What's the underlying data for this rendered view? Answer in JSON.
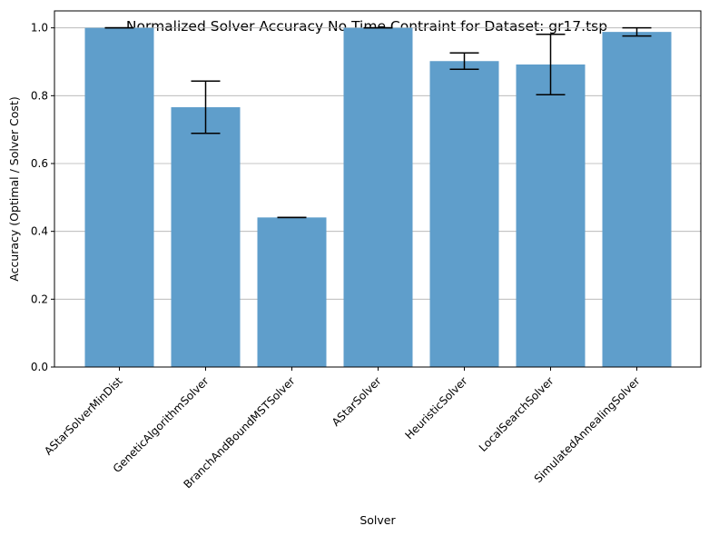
{
  "chart_data": {
    "type": "bar",
    "title": "Normalized Solver Accuracy No Time Contraint for Dataset: gr17.tsp",
    "xlabel": "Solver",
    "ylabel": "Accuracy (Optimal / Solver Cost)",
    "ylim": [
      0,
      1.05
    ],
    "yticks": [
      "0.0",
      "0.2",
      "0.4",
      "0.6",
      "0.8",
      "1.0"
    ],
    "ytick_values": [
      0.0,
      0.2,
      0.4,
      0.6,
      0.8,
      1.0
    ],
    "grid": "y-axis horizontal lines",
    "bar_color": "#5f9ecb",
    "categories": [
      "AStarSolverMinDist",
      "GeneticAlgorithmSolver",
      "BranchAndBoundMSTSolver",
      "AStarSolver",
      "HeuristicSolver",
      "LocalSearchSolver",
      "SimulatedAnnealingSolver"
    ],
    "values": [
      1.0,
      0.766,
      0.441,
      1.0,
      0.902,
      0.892,
      0.988
    ],
    "error": [
      0.0,
      0.077,
      0.0,
      0.0,
      0.024,
      0.089,
      0.012
    ]
  }
}
